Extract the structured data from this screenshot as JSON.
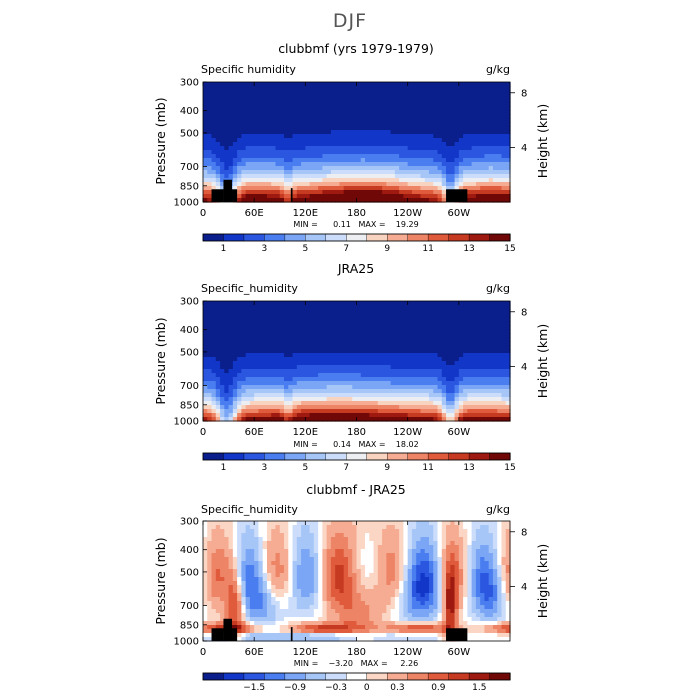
{
  "figure_title": "DJF",
  "colors": {
    "full_palette": [
      "#0a1e8c",
      "#1236c8",
      "#2a56e0",
      "#4a7ef0",
      "#7aa6f5",
      "#a6c6f8",
      "#cbddfa",
      "#eceef2",
      "#f8d4c0",
      "#f5ac92",
      "#ee8466",
      "#e05a3c",
      "#c63a22",
      "#9e1a10",
      "#700808"
    ],
    "diff_palette": [
      "#0a1e8c",
      "#1236c8",
      "#2a56e0",
      "#4a7ef0",
      "#7aa6f5",
      "#a6c6f8",
      "#cbddfa",
      "#ffffff",
      "#fbd6c4",
      "#f5ac92",
      "#ee8466",
      "#e05a3c",
      "#c63a22",
      "#9e1a10",
      "#700808"
    ],
    "topography": "#000000"
  },
  "chart_data": [
    {
      "type": "heatmap",
      "title": "clubbmf (yrs 1979-1979)",
      "left_label": "Specific humidity",
      "units": "g/kg",
      "ylabel": "Pressure (mb)",
      "ylabel_right": "Height (km)",
      "x_ticks": [
        "0",
        "60E",
        "120E",
        "180",
        "120W",
        "60W"
      ],
      "x_tick_values": [
        0,
        60,
        120,
        180,
        240,
        300
      ],
      "xlim": [
        0,
        360
      ],
      "y_ticks": [
        "300",
        "400",
        "500",
        "700",
        "850",
        "1000"
      ],
      "y_tick_values": [
        300,
        400,
        500,
        700,
        850,
        1000
      ],
      "ylim": [
        300,
        1000
      ],
      "height_ticks": [
        "8",
        "4"
      ],
      "height_tick_values": [
        8,
        4
      ],
      "min_max_text": "MIN =      0.11   MAX =    19.29",
      "min": 0.11,
      "max": 19.29,
      "colorbar_labels": [
        "1",
        "3",
        "5",
        "7",
        "9",
        "11",
        "13",
        "15"
      ],
      "colorbar_values": [
        1,
        3,
        5,
        7,
        9,
        11,
        13,
        15
      ],
      "field": "q",
      "palette": "full",
      "show_topography": true
    },
    {
      "type": "heatmap",
      "title": "JRA25",
      "left_label": "Specific_humidity",
      "units": "g/kg",
      "ylabel": "Pressure (mb)",
      "ylabel_right": "Height (km)",
      "x_ticks": [
        "0",
        "60E",
        "120E",
        "180",
        "120W",
        "60W"
      ],
      "x_tick_values": [
        0,
        60,
        120,
        180,
        240,
        300
      ],
      "xlim": [
        0,
        360
      ],
      "y_ticks": [
        "300",
        "400",
        "500",
        "700",
        "850",
        "1000"
      ],
      "y_tick_values": [
        300,
        400,
        500,
        700,
        850,
        1000
      ],
      "ylim": [
        300,
        1000
      ],
      "height_ticks": [
        "8",
        "4"
      ],
      "height_tick_values": [
        8,
        4
      ],
      "min_max_text": "MIN =      0.14   MAX =    18.02",
      "min": 0.14,
      "max": 18.02,
      "colorbar_labels": [
        "1",
        "3",
        "5",
        "7",
        "9",
        "11",
        "13",
        "15"
      ],
      "colorbar_values": [
        1,
        3,
        5,
        7,
        9,
        11,
        13,
        15
      ],
      "field": "q_ref",
      "palette": "full",
      "show_topography": false
    },
    {
      "type": "heatmap",
      "title": "clubbmf - JRA25",
      "left_label": "Specific_humidity",
      "units": "g/kg",
      "ylabel": "Pressure (mb)",
      "ylabel_right": "Height (km)",
      "x_ticks": [
        "0",
        "60E",
        "120E",
        "180",
        "120W",
        "60W"
      ],
      "x_tick_values": [
        0,
        60,
        120,
        180,
        240,
        300
      ],
      "xlim": [
        0,
        360
      ],
      "y_ticks": [
        "300",
        "400",
        "500",
        "700",
        "850",
        "1000"
      ],
      "y_tick_values": [
        300,
        400,
        500,
        700,
        850,
        1000
      ],
      "ylim": [
        300,
        1000
      ],
      "height_ticks": [
        "8",
        "4"
      ],
      "height_tick_values": [
        8,
        4
      ],
      "min_max_text": "MIN =    −3.20   MAX =     2.26",
      "min": -3.2,
      "max": 2.26,
      "colorbar_labels": [
        "−1.5",
        "−0.9",
        "−0.3",
        "0",
        "0.3",
        "0.9",
        "1.5"
      ],
      "colorbar_values": [
        -1.5,
        -0.9,
        -0.3,
        0,
        0.3,
        0.9,
        1.5
      ],
      "field": "diff",
      "palette": "diff",
      "show_topography": true
    }
  ]
}
